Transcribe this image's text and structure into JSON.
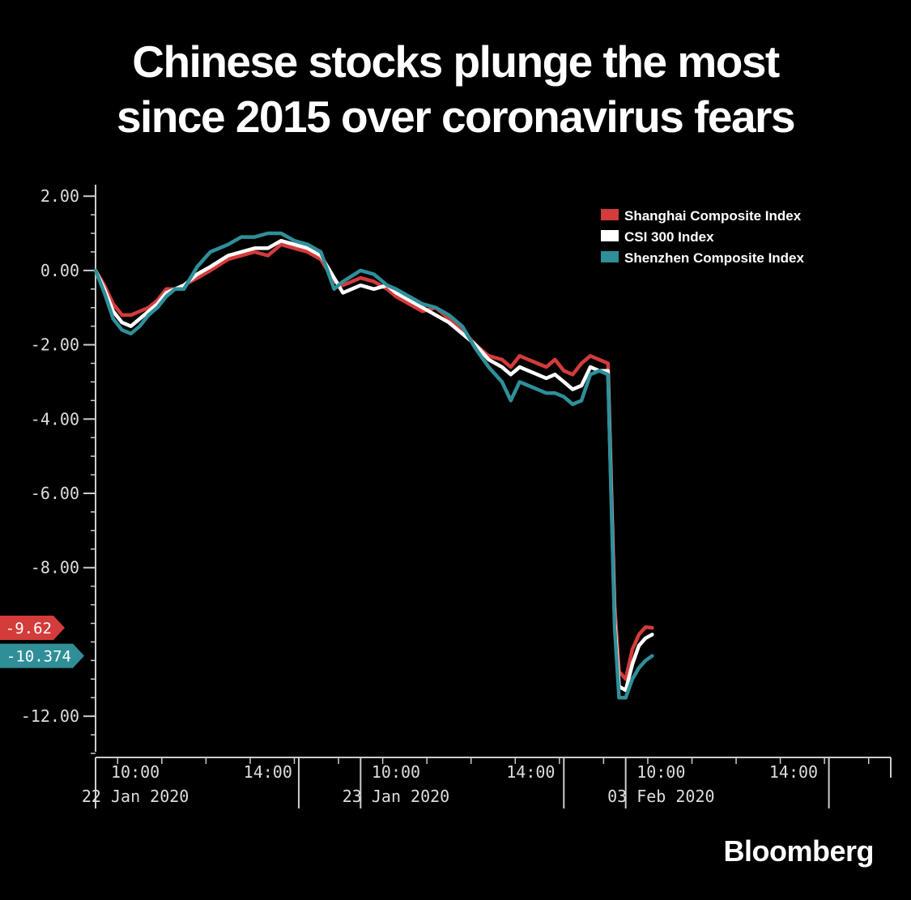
{
  "title_lines": [
    "Chinese stocks plunge the most",
    "since 2015 over coronavirus fears"
  ],
  "brand": "Bloomberg",
  "colors": {
    "background": "#000000",
    "shanghai": "#d43b3b",
    "csi300": "#ffffff",
    "shenzhen": "#2f8f99",
    "axis": "#cccccc"
  },
  "chart_data": {
    "type": "line",
    "title": "Chinese stocks plunge the most since 2015 over coronavirus fears",
    "xlabel": "",
    "ylabel": "",
    "ylim": [
      -13,
      2.2
    ],
    "y_ticks": [
      2,
      0,
      -2,
      -4,
      -6,
      -8,
      -12
    ],
    "y_tick_labels": [
      "2.00",
      "0.00",
      "-2.00",
      "-4.00",
      "-6.00",
      "-8.00",
      "-12.00"
    ],
    "x_tick_labels": [
      {
        "time": "10:00",
        "date": "22 Jan 2020",
        "x": 0.9
      },
      {
        "time": "14:00",
        "date": "",
        "x": 3.9
      },
      {
        "time": "10:00",
        "date": "23 Jan 2020",
        "x": 6.8
      },
      {
        "time": "14:00",
        "date": "",
        "x": 9.85
      },
      {
        "time": "10:00",
        "date": "03 Feb 2020",
        "x": 12.8
      },
      {
        "time": "14:00",
        "date": "",
        "x": 15.8
      }
    ],
    "x_session_boundaries": [
      0,
      6,
      12
    ],
    "xlim": [
      0,
      18
    ],
    "legend": {
      "placement": "top-right",
      "entries": [
        "Shanghai Composite Index",
        "CSI 300 Index",
        "Shenzhen Composite Index"
      ]
    },
    "grid": false,
    "series": [
      {
        "name": "Shanghai Composite Index",
        "color": "#d43b3b",
        "last_value_label": "-9.62",
        "x": [
          0,
          0.2,
          0.4,
          0.6,
          0.8,
          1.0,
          1.2,
          1.4,
          1.6,
          1.8,
          2.0,
          2.3,
          2.6,
          3.0,
          3.3,
          3.6,
          3.9,
          4.2,
          4.5,
          4.8,
          5.1,
          5.4,
          5.6,
          6.0,
          6.3,
          6.6,
          6.8,
          7.1,
          7.4,
          7.7,
          8.0,
          8.3,
          8.6,
          8.9,
          9.2,
          9.4,
          9.6,
          9.8,
          10.0,
          10.2,
          10.4,
          10.6,
          10.8,
          11.0,
          11.2,
          11.4,
          11.6,
          11.75,
          11.85,
          12.0,
          12.15,
          12.3,
          12.45,
          12.6
        ],
        "y": [
          0,
          -0.4,
          -0.9,
          -1.2,
          -1.2,
          -1.1,
          -1.0,
          -0.8,
          -0.5,
          -0.5,
          -0.4,
          -0.2,
          0.0,
          0.3,
          0.4,
          0.5,
          0.4,
          0.7,
          0.6,
          0.5,
          0.3,
          -0.3,
          -0.4,
          -0.2,
          -0.3,
          -0.5,
          -0.7,
          -0.9,
          -1.1,
          -1.0,
          -1.3,
          -1.6,
          -2.0,
          -2.3,
          -2.4,
          -2.6,
          -2.3,
          -2.4,
          -2.5,
          -2.6,
          -2.4,
          -2.7,
          -2.8,
          -2.5,
          -2.3,
          -2.4,
          -2.5,
          -9.0,
          -10.8,
          -11.0,
          -10.2,
          -9.8,
          -9.6,
          -9.62
        ]
      },
      {
        "name": "CSI 300 Index",
        "color": "#ffffff",
        "last_value_label": "",
        "x": [
          0,
          0.2,
          0.4,
          0.6,
          0.8,
          1.0,
          1.2,
          1.4,
          1.6,
          1.8,
          2.0,
          2.3,
          2.6,
          3.0,
          3.3,
          3.6,
          3.9,
          4.2,
          4.5,
          4.8,
          5.1,
          5.4,
          5.6,
          6.0,
          6.3,
          6.6,
          6.8,
          7.1,
          7.4,
          7.7,
          8.0,
          8.3,
          8.6,
          8.9,
          9.2,
          9.4,
          9.6,
          9.8,
          10.0,
          10.2,
          10.4,
          10.6,
          10.8,
          11.0,
          11.2,
          11.4,
          11.6,
          11.75,
          11.85,
          12.0,
          12.15,
          12.3,
          12.45,
          12.6
        ],
        "y": [
          0,
          -0.5,
          -1.1,
          -1.4,
          -1.5,
          -1.3,
          -1.1,
          -0.9,
          -0.6,
          -0.5,
          -0.4,
          -0.1,
          0.1,
          0.4,
          0.5,
          0.6,
          0.6,
          0.8,
          0.7,
          0.6,
          0.4,
          -0.2,
          -0.6,
          -0.4,
          -0.5,
          -0.4,
          -0.6,
          -0.8,
          -1.0,
          -1.2,
          -1.4,
          -1.7,
          -2.0,
          -2.4,
          -2.6,
          -2.8,
          -2.6,
          -2.7,
          -2.8,
          -2.9,
          -2.8,
          -3.0,
          -3.2,
          -3.1,
          -2.6,
          -2.7,
          -2.7,
          -9.4,
          -11.2,
          -11.3,
          -10.6,
          -10.1,
          -9.9,
          -9.8
        ]
      },
      {
        "name": "Shenzhen Composite Index",
        "color": "#2f8f99",
        "last_value_label": "-10.374",
        "x": [
          0,
          0.2,
          0.4,
          0.6,
          0.8,
          1.0,
          1.2,
          1.4,
          1.6,
          1.8,
          2.0,
          2.3,
          2.6,
          3.0,
          3.3,
          3.6,
          3.9,
          4.2,
          4.5,
          4.8,
          5.1,
          5.4,
          5.6,
          6.0,
          6.3,
          6.6,
          6.8,
          7.1,
          7.4,
          7.7,
          8.0,
          8.3,
          8.6,
          8.9,
          9.2,
          9.4,
          9.6,
          9.8,
          10.0,
          10.2,
          10.4,
          10.6,
          10.8,
          11.0,
          11.2,
          11.4,
          11.6,
          11.75,
          11.85,
          12.0,
          12.15,
          12.3,
          12.45,
          12.6
        ],
        "y": [
          0,
          -0.6,
          -1.3,
          -1.6,
          -1.7,
          -1.5,
          -1.2,
          -1.0,
          -0.7,
          -0.5,
          -0.5,
          0.1,
          0.5,
          0.7,
          0.9,
          0.9,
          1.0,
          1.0,
          0.8,
          0.7,
          0.5,
          -0.5,
          -0.3,
          0.0,
          -0.1,
          -0.4,
          -0.5,
          -0.7,
          -0.9,
          -1.0,
          -1.2,
          -1.5,
          -2.1,
          -2.6,
          -3.0,
          -3.5,
          -3.0,
          -3.1,
          -3.2,
          -3.3,
          -3.3,
          -3.4,
          -3.6,
          -3.5,
          -2.8,
          -2.7,
          -2.8,
          -9.6,
          -11.5,
          -11.5,
          -11.0,
          -10.7,
          -10.5,
          -10.374
        ]
      }
    ]
  }
}
